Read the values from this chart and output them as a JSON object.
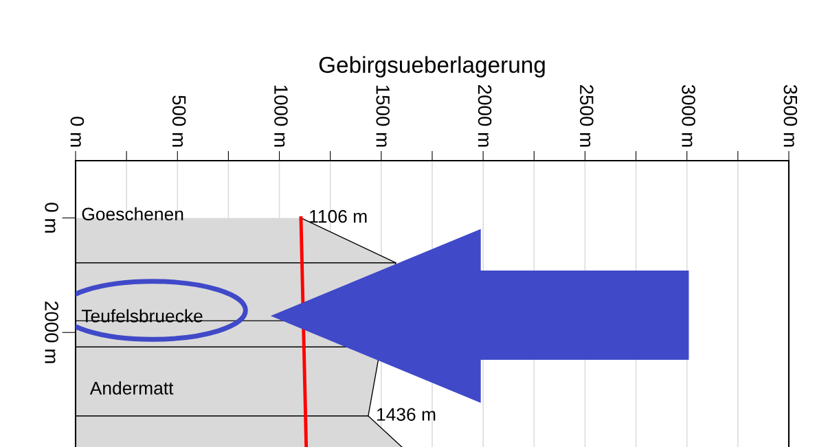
{
  "chart_data": {
    "type": "area",
    "orientation": "horizontal",
    "xlabel": "Gebirgsueberlagerung",
    "series": [
      {
        "color": "#d9d9d9",
        "x": [
          0,
          783,
          1795,
          2253,
          3458,
          4012
        ],
        "values": [
          1106,
          1571,
          null,
          null,
          1436,
          1605
        ]
      },
      {
        "type": "line",
        "color": "#ff0000",
        "x": [
          0,
          1795,
          4012
        ],
        "values": [
          1106,
          null,
          1132
        ]
      }
    ],
    "xlim": [
      0,
      3500
    ],
    "xticks": [
      {
        "value": 0,
        "label": "0 m"
      },
      {
        "value": 250,
        "label": null
      },
      {
        "value": 500,
        "label": "500 m"
      },
      {
        "value": 750,
        "label": null
      },
      {
        "value": 1000,
        "label": "1000 m"
      },
      {
        "value": 1250,
        "label": null
      },
      {
        "value": 1500,
        "label": "1500 m"
      },
      {
        "value": 1750,
        "label": null
      },
      {
        "value": 2000,
        "label": "2000 m"
      },
      {
        "value": 2250,
        "label": null
      },
      {
        "value": 2500,
        "label": "2500 m"
      },
      {
        "value": 2750,
        "label": null
      },
      {
        "value": 3000,
        "label": "3000 m"
      },
      {
        "value": 3250,
        "label": null
      },
      {
        "value": 3500,
        "label": "3500 m"
      }
    ],
    "ylim": [
      4000,
      -1000
    ],
    "yticks": [
      {
        "value": 0,
        "label": "0 m"
      },
      {
        "value": 2000,
        "label": "2000 m"
      }
    ],
    "grid": "x",
    "ref_lines": [
      {
        "axis": "y",
        "value": 783,
        "color": "#000000"
      },
      {
        "axis": "y",
        "value": 1795,
        "color": "#000000"
      },
      {
        "axis": "y",
        "value": 2253,
        "color": "#000000"
      },
      {
        "axis": "y",
        "value": 3458,
        "color": "#000000"
      }
    ],
    "annotations": [
      "Goeschenen",
      "Teufelsbruecke",
      "Andermatt",
      {
        "text": "1106 m",
        "x": 1106,
        "y": 0
      },
      {
        "text": "1436 m",
        "x": 1436,
        "y": 3458
      }
    ]
  }
}
